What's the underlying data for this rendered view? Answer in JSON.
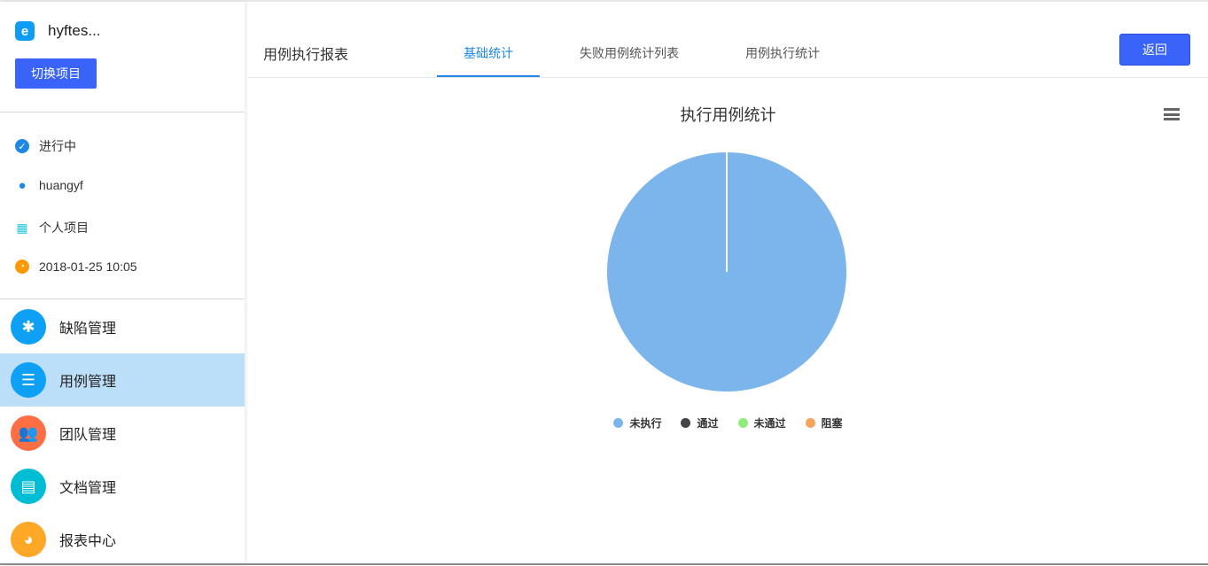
{
  "sidebar": {
    "project_name": "hyftes...",
    "switch_label": "切换项目",
    "info": [
      {
        "icon": "check-circle-icon",
        "text": "进行中",
        "color": "#1e88e5"
      },
      {
        "icon": "user-icon",
        "text": "huangyf",
        "color": "#1e88e5"
      },
      {
        "icon": "grid-icon",
        "text": "个人项目",
        "color": "#26c6da"
      },
      {
        "icon": "clock-icon",
        "text": "2018-01-25 10:05",
        "color": "#ff9800"
      }
    ],
    "nav": [
      {
        "label": "缺陷管理",
        "icon": "bug-icon",
        "color": "#0ea0f5"
      },
      {
        "label": "用例管理",
        "icon": "list-icon",
        "color": "#0ea0f5",
        "active": true
      },
      {
        "label": "团队管理",
        "icon": "team-icon",
        "color": "#ff6f43"
      },
      {
        "label": "文档管理",
        "icon": "document-icon",
        "color": "#00bcd4"
      },
      {
        "label": "报表中心",
        "icon": "pie-chart-icon",
        "color": "#ffa726"
      }
    ]
  },
  "header": {
    "title": "用例执行报表",
    "tabs": [
      {
        "label": "基础统计",
        "active": true
      },
      {
        "label": "失败用例统计列表"
      },
      {
        "label": "用例执行统计"
      }
    ],
    "back_label": "返回"
  },
  "chart_data": {
    "type": "pie",
    "title": "执行用例统计",
    "categories": [
      "未执行",
      "通过",
      "未通过",
      "阻塞"
    ],
    "values": [
      1,
      0,
      0,
      0
    ],
    "colors": [
      "#7cb5ec",
      "#434348",
      "#90ed7d",
      "#f7a35c"
    ],
    "legend": "bottom"
  }
}
